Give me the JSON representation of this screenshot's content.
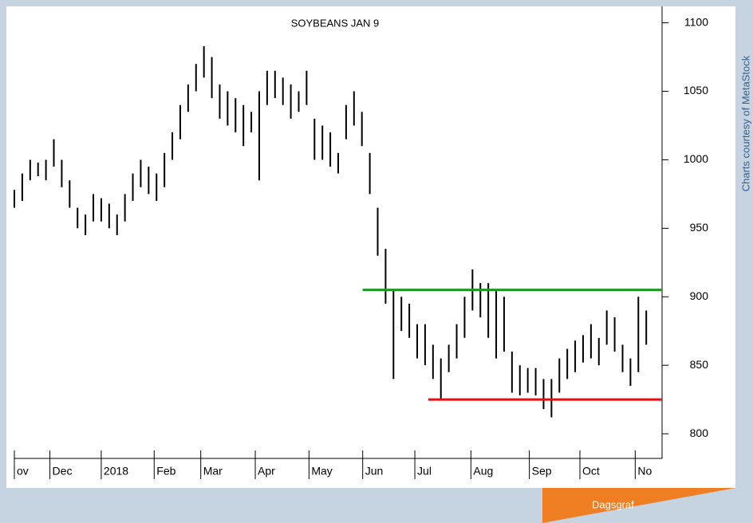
{
  "chart_data": {
    "type": "hlbar",
    "title": "SOYBEANS JAN 9",
    "source": "Charts courtesy of MetaStock",
    "badge": "Dagsgraf",
    "color": "#000000",
    "x": [
      0,
      1,
      2,
      3,
      4,
      5,
      6,
      7,
      8,
      9,
      10,
      11,
      12,
      13,
      14,
      15,
      16,
      17,
      18,
      19,
      20,
      21,
      22,
      23,
      24,
      25,
      26,
      27,
      28,
      29,
      30,
      31,
      32,
      33,
      34,
      35,
      36,
      37,
      38,
      39,
      40,
      41,
      42,
      43,
      44,
      45,
      46,
      47,
      48,
      49,
      50,
      51,
      52,
      53,
      54,
      55,
      56,
      57,
      58,
      59,
      60,
      61,
      62,
      63,
      64,
      65,
      66,
      67,
      68,
      69,
      70,
      71,
      72,
      73,
      74,
      75,
      76,
      77,
      78,
      79,
      80
    ],
    "high": [
      978,
      990,
      1000,
      998,
      1000,
      1015,
      1000,
      985,
      965,
      960,
      975,
      972,
      968,
      960,
      975,
      990,
      1000,
      995,
      990,
      1005,
      1020,
      1040,
      1055,
      1070,
      1083,
      1075,
      1055,
      1050,
      1045,
      1040,
      1035,
      1050,
      1065,
      1065,
      1060,
      1055,
      1050,
      1065,
      1030,
      1025,
      1020,
      1005,
      1040,
      1050,
      1035,
      1005,
      965,
      935,
      905,
      900,
      895,
      880,
      880,
      865,
      855,
      865,
      880,
      900,
      920,
      910,
      910,
      905,
      900,
      860,
      850,
      848,
      848,
      840,
      840,
      855,
      862,
      868,
      872,
      880,
      870,
      890,
      885,
      865,
      855,
      900,
      890
    ],
    "low": [
      965,
      970,
      985,
      988,
      985,
      995,
      980,
      965,
      950,
      945,
      955,
      955,
      950,
      945,
      955,
      970,
      980,
      975,
      970,
      980,
      1000,
      1015,
      1035,
      1050,
      1060,
      1045,
      1030,
      1025,
      1020,
      1010,
      1020,
      985,
      1040,
      1045,
      1040,
      1030,
      1035,
      1040,
      1000,
      1000,
      995,
      990,
      1015,
      1025,
      1010,
      975,
      930,
      895,
      840,
      875,
      870,
      855,
      850,
      840,
      825,
      845,
      855,
      870,
      890,
      885,
      870,
      855,
      860,
      830,
      828,
      830,
      828,
      818,
      812,
      830,
      840,
      845,
      852,
      855,
      850,
      865,
      860,
      845,
      835,
      845,
      865
    ],
    "hlines": [
      {
        "value": 905,
        "color": "#1a9a1a",
        "from": 44.1
      },
      {
        "value": 825,
        "color": "#e01010",
        "from": 52.4
      }
    ],
    "xlim": [
      0,
      82
    ],
    "xticks": [
      {
        "value": -0.3,
        "label": "ov"
      },
      {
        "value": 4.5,
        "label": "Dec"
      },
      {
        "value": 11,
        "label": "2018"
      },
      {
        "value": 17.7,
        "label": "Feb"
      },
      {
        "value": 23.6,
        "label": "Mar"
      },
      {
        "value": 30.5,
        "label": "Apr"
      },
      {
        "value": 37.3,
        "label": "May"
      },
      {
        "value": 44.1,
        "label": "Jun"
      },
      {
        "value": 50.7,
        "label": "Jul"
      },
      {
        "value": 57.8,
        "label": "Aug"
      },
      {
        "value": 65.2,
        "label": "Sep"
      },
      {
        "value": 71.6,
        "label": "Oct"
      },
      {
        "value": 78.6,
        "label": "No"
      }
    ],
    "ylim": [
      782,
      1112
    ],
    "yticks": [
      800,
      850,
      900,
      950,
      1000,
      1050,
      1100
    ]
  }
}
